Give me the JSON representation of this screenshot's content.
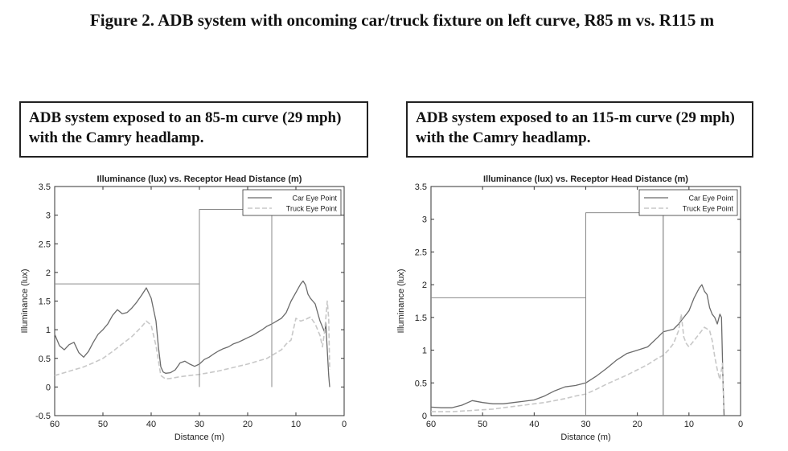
{
  "figure_title": "Figure 2. ADB system with oncoming car/truck fixture on left curve, R85 m vs. R115 m",
  "captions": [
    "ADB system exposed to an 85-m curve (29 mph) with the Camry headlamp.",
    "ADB system exposed to an 115-m curve (29 mph) with the Camry headlamp."
  ],
  "colors": {
    "car": "#6b6b6b",
    "truck": "#c8c8c8",
    "fixture": "#8a8a8a",
    "axis": "#333333"
  },
  "chart_data": [
    {
      "type": "line",
      "title": "Illuminance (lux) vs. Receptor Head Distance (m)",
      "xlabel": "Distance (m)",
      "ylabel": "Illuminance (lux)",
      "xlim": [
        60,
        0
      ],
      "ylim": [
        -0.5,
        3.5
      ],
      "x_ticks": [
        60,
        50,
        40,
        30,
        20,
        10,
        0
      ],
      "y_ticks": [
        -0.5,
        0,
        0.5,
        1,
        1.5,
        2,
        2.5,
        3,
        3.5
      ],
      "y_tick_labels": [
        "-0.5",
        "0",
        "0.5",
        "1",
        "1.5",
        "2",
        "2.5",
        "3",
        "3.5"
      ],
      "grid": false,
      "legend": "top-right",
      "series": [
        {
          "name": "Car Eye Point",
          "style": "solid",
          "x": [
            60,
            59,
            58,
            57,
            56,
            55,
            54,
            53,
            52,
            51,
            50,
            49,
            48,
            47,
            46,
            45,
            44,
            43,
            42,
            41,
            40,
            39,
            38.5,
            38,
            37.5,
            37,
            36,
            35,
            34,
            33,
            32,
            31,
            30,
            29,
            28,
            27,
            26,
            25,
            24,
            23,
            22,
            21,
            20,
            19,
            18,
            17,
            16,
            15,
            14,
            13,
            12,
            11,
            10,
            9,
            8.5,
            8,
            7.5,
            7,
            6.5,
            6,
            5.5,
            5,
            4.5,
            4,
            3.8,
            3.6,
            3.4,
            3.2,
            3
          ],
          "y": [
            0.92,
            0.72,
            0.65,
            0.74,
            0.78,
            0.6,
            0.52,
            0.62,
            0.78,
            0.92,
            1.0,
            1.1,
            1.25,
            1.35,
            1.28,
            1.3,
            1.38,
            1.48,
            1.6,
            1.73,
            1.55,
            1.15,
            0.7,
            0.35,
            0.26,
            0.24,
            0.25,
            0.3,
            0.42,
            0.45,
            0.4,
            0.36,
            0.4,
            0.48,
            0.52,
            0.58,
            0.63,
            0.67,
            0.7,
            0.75,
            0.78,
            0.82,
            0.86,
            0.9,
            0.95,
            1.0,
            1.06,
            1.1,
            1.15,
            1.2,
            1.3,
            1.5,
            1.65,
            1.8,
            1.85,
            1.78,
            1.62,
            1.55,
            1.5,
            1.45,
            1.3,
            1.15,
            1.05,
            0.95,
            1.12,
            0.8,
            0.5,
            0.2,
            0.0
          ]
        },
        {
          "name": "Truck Eye Point",
          "style": "dashed",
          "x": [
            60,
            58,
            56,
            54,
            52,
            50,
            48,
            46,
            44,
            42,
            41,
            40,
            39,
            38,
            37,
            36,
            34,
            32,
            30,
            28,
            26,
            24,
            22,
            20,
            18,
            16,
            14,
            13,
            12,
            11,
            10,
            9,
            8,
            7,
            6,
            5,
            4.5,
            4,
            3.5,
            3.2,
            3
          ],
          "y": [
            0.2,
            0.25,
            0.3,
            0.35,
            0.42,
            0.5,
            0.62,
            0.75,
            0.88,
            1.05,
            1.15,
            1.08,
            0.72,
            0.2,
            0.14,
            0.15,
            0.18,
            0.2,
            0.22,
            0.25,
            0.28,
            0.32,
            0.36,
            0.4,
            0.45,
            0.5,
            0.6,
            0.65,
            0.75,
            0.82,
            1.2,
            1.15,
            1.18,
            1.22,
            1.1,
            0.9,
            0.7,
            1.0,
            1.5,
            1.2,
            0.3
          ]
        },
        {
          "name": "",
          "style": "fixture",
          "x": [
            60,
            30,
            30,
            15,
            15
          ],
          "y": [
            1.8,
            1.8,
            3.1,
            3.1,
            0
          ]
        }
      ],
      "fixture_verticals": [
        {
          "x": 30,
          "y": [
            0,
            3.1
          ]
        },
        {
          "x": 15,
          "y": [
            0,
            3.1
          ]
        }
      ]
    },
    {
      "type": "line",
      "title": "Illuminance (lux) vs. Receptor Head Distance (m)",
      "xlabel": "Distance (m)",
      "ylabel": "Illuminance (lux)",
      "xlim": [
        60,
        0
      ],
      "ylim": [
        0,
        3.5
      ],
      "x_ticks": [
        60,
        50,
        40,
        30,
        20,
        10,
        0
      ],
      "y_ticks": [
        0,
        0.5,
        1,
        1.5,
        2,
        2.5,
        3,
        3.5
      ],
      "y_tick_labels": [
        "0",
        "0.5",
        "1",
        "1.5",
        "2",
        "2.5",
        "3",
        "3.5"
      ],
      "grid": false,
      "legend": "top-right",
      "series": [
        {
          "name": "Car Eye Point",
          "style": "solid",
          "x": [
            60,
            58,
            56,
            54,
            52,
            50,
            48,
            46,
            44,
            42,
            40,
            38,
            36,
            34,
            32,
            30,
            28,
            26,
            24,
            22,
            20,
            18,
            16,
            15,
            14,
            13,
            12,
            11,
            10,
            9,
            8,
            7.5,
            7,
            6.5,
            6,
            5.5,
            5,
            4.5,
            4,
            3.7,
            3.4,
            3.2
          ],
          "y": [
            0.13,
            0.12,
            0.12,
            0.16,
            0.23,
            0.2,
            0.18,
            0.18,
            0.2,
            0.22,
            0.24,
            0.3,
            0.38,
            0.44,
            0.46,
            0.5,
            0.6,
            0.72,
            0.85,
            0.95,
            1.0,
            1.05,
            1.2,
            1.28,
            1.3,
            1.32,
            1.4,
            1.5,
            1.6,
            1.8,
            1.95,
            2.0,
            1.9,
            1.85,
            1.65,
            1.55,
            1.5,
            1.4,
            1.55,
            1.5,
            0.5,
            0.0
          ]
        },
        {
          "name": "Truck Eye Point",
          "style": "dashed",
          "x": [
            60,
            58,
            56,
            54,
            52,
            50,
            48,
            46,
            44,
            42,
            40,
            38,
            36,
            34,
            32,
            30,
            28,
            26,
            24,
            22,
            20,
            18,
            16,
            15,
            14,
            13,
            12,
            11.5,
            11,
            10.5,
            10,
            9,
            8,
            7,
            6,
            5.5,
            5,
            4.5,
            4,
            3.5,
            3.2
          ],
          "y": [
            0.06,
            0.06,
            0.06,
            0.07,
            0.08,
            0.09,
            0.1,
            0.12,
            0.14,
            0.16,
            0.18,
            0.2,
            0.23,
            0.26,
            0.3,
            0.33,
            0.4,
            0.48,
            0.55,
            0.62,
            0.7,
            0.78,
            0.88,
            0.92,
            1.0,
            1.1,
            1.3,
            1.55,
            1.2,
            1.1,
            1.05,
            1.15,
            1.25,
            1.35,
            1.3,
            1.15,
            0.9,
            0.7,
            0.55,
            0.8,
            0.1
          ]
        },
        {
          "name": "",
          "style": "fixture",
          "x": [
            60,
            30,
            30,
            15,
            15
          ],
          "y": [
            1.8,
            1.8,
            3.1,
            3.1,
            0
          ]
        }
      ],
      "fixture_verticals": [
        {
          "x": 30,
          "y": [
            0,
            3.1
          ]
        },
        {
          "x": 15,
          "y": [
            0,
            3.1
          ]
        }
      ]
    }
  ]
}
